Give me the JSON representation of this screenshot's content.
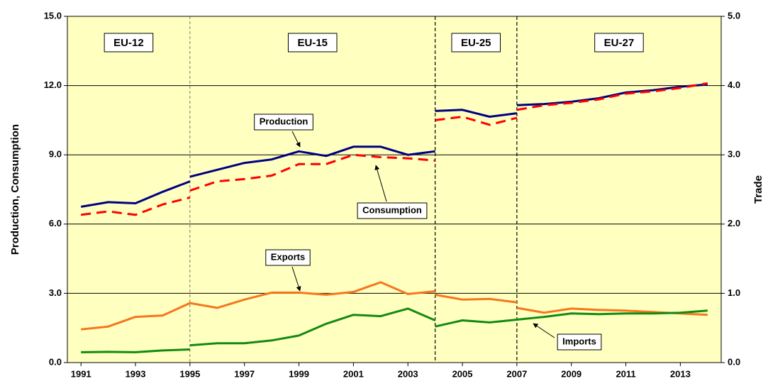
{
  "chart_data": {
    "type": "line",
    "y_label": "Production, Consumption",
    "y2_label": "Trade",
    "xlim": [
      1990.5,
      2014.5
    ],
    "xticks": [
      1991,
      1993,
      1995,
      1997,
      1999,
      2001,
      2003,
      2005,
      2007,
      2009,
      2011,
      2013
    ],
    "ylim": [
      0,
      15
    ],
    "yticks": [
      {
        "value": 0,
        "label": "0.0"
      },
      {
        "value": 3,
        "label": "3.0"
      },
      {
        "value": 6,
        "label": "6.0"
      },
      {
        "value": 9,
        "label": "9.0"
      },
      {
        "value": 12,
        "label": "12.0"
      },
      {
        "value": 15,
        "label": "15.0"
      }
    ],
    "y2lim": [
      0,
      5
    ],
    "y2ticks": [
      {
        "value": 0,
        "label": "0.0"
      },
      {
        "value": 1,
        "label": "1.0"
      },
      {
        "value": 2,
        "label": "2.0"
      },
      {
        "value": 3,
        "label": "3.0"
      },
      {
        "value": 4,
        "label": "4.0"
      },
      {
        "value": 5,
        "label": "5.0"
      }
    ],
    "grid": true,
    "period_boundaries": [
      1995,
      2004,
      2007
    ],
    "periods": [
      "EU-12",
      "EU-15",
      "EU-25",
      "EU-27"
    ],
    "series": [
      {
        "name": "Production",
        "color": "#000080",
        "dashed": false,
        "x": [
          1991,
          1992,
          1993,
          1994,
          1995,
          null,
          1995,
          1996,
          1997,
          1998,
          1999,
          2000,
          2001,
          2002,
          2003,
          2004,
          null,
          2004,
          2005,
          2006,
          2007,
          null,
          2007,
          2008,
          2009,
          2010,
          2011,
          2012,
          2013,
          2014
        ],
        "values": [
          6.75,
          6.95,
          6.9,
          7.4,
          7.85,
          null,
          8.05,
          8.35,
          8.65,
          8.8,
          9.15,
          8.95,
          9.35,
          9.35,
          9.0,
          9.15,
          null,
          10.9,
          10.95,
          10.65,
          10.8,
          null,
          11.15,
          11.2,
          11.3,
          11.45,
          11.7,
          11.8,
          11.95,
          12.05
        ]
      },
      {
        "name": "Consumption",
        "color": "#ff0000",
        "dashed": true,
        "x": [
          1991,
          1992,
          1993,
          1994,
          1995,
          null,
          1995,
          1996,
          1997,
          1998,
          1999,
          2000,
          2001,
          2002,
          2003,
          2004,
          null,
          2004,
          2005,
          2006,
          2007,
          null,
          2007,
          2008,
          2009,
          2010,
          2011,
          2012,
          2013,
          2014
        ],
        "values": [
          6.4,
          6.55,
          6.4,
          6.85,
          7.15,
          null,
          7.45,
          7.85,
          7.95,
          8.1,
          8.6,
          8.6,
          9.0,
          8.9,
          8.85,
          8.75,
          null,
          10.5,
          10.65,
          10.3,
          10.6,
          null,
          10.95,
          11.15,
          11.25,
          11.4,
          11.65,
          11.75,
          11.9,
          12.1
        ]
      },
      {
        "name": "Exports",
        "color": "#f7761e",
        "dashed": false,
        "axis": "y2",
        "x": [
          1991,
          1992,
          1993,
          1994,
          1995,
          1996,
          1997,
          1998,
          1999,
          2000,
          2001,
          2002,
          2003,
          2004,
          null,
          2004,
          2005,
          2006,
          2007,
          null,
          2007,
          2008,
          2009,
          2010,
          2011,
          2012,
          2013,
          2014
        ],
        "values": [
          0.48,
          0.52,
          0.66,
          0.68,
          0.86,
          0.79,
          0.91,
          1.01,
          1.01,
          0.98,
          1.02,
          1.16,
          0.99,
          1.03,
          null,
          0.98,
          0.91,
          0.92,
          0.87,
          null,
          0.79,
          0.72,
          0.78,
          0.76,
          0.75,
          0.73,
          0.71,
          0.69
        ]
      },
      {
        "name": "Imports",
        "color": "#138a12",
        "dashed": false,
        "axis": "y2",
        "x": [
          1991,
          1992,
          1993,
          1994,
          1995,
          null,
          1995,
          1996,
          1997,
          1998,
          1999,
          2000,
          2001,
          2002,
          2003,
          2004,
          null,
          2004,
          2005,
          2006,
          2007,
          2008,
          2009,
          2010,
          2011,
          2012,
          2013,
          2014
        ],
        "values": [
          0.15,
          0.155,
          0.15,
          0.175,
          0.19,
          null,
          0.25,
          0.28,
          0.28,
          0.32,
          0.39,
          0.56,
          0.69,
          0.67,
          0.78,
          0.61,
          null,
          0.52,
          0.61,
          0.58,
          0.62,
          0.66,
          0.71,
          0.7,
          0.71,
          0.71,
          0.72,
          0.75
        ]
      }
    ]
  }
}
